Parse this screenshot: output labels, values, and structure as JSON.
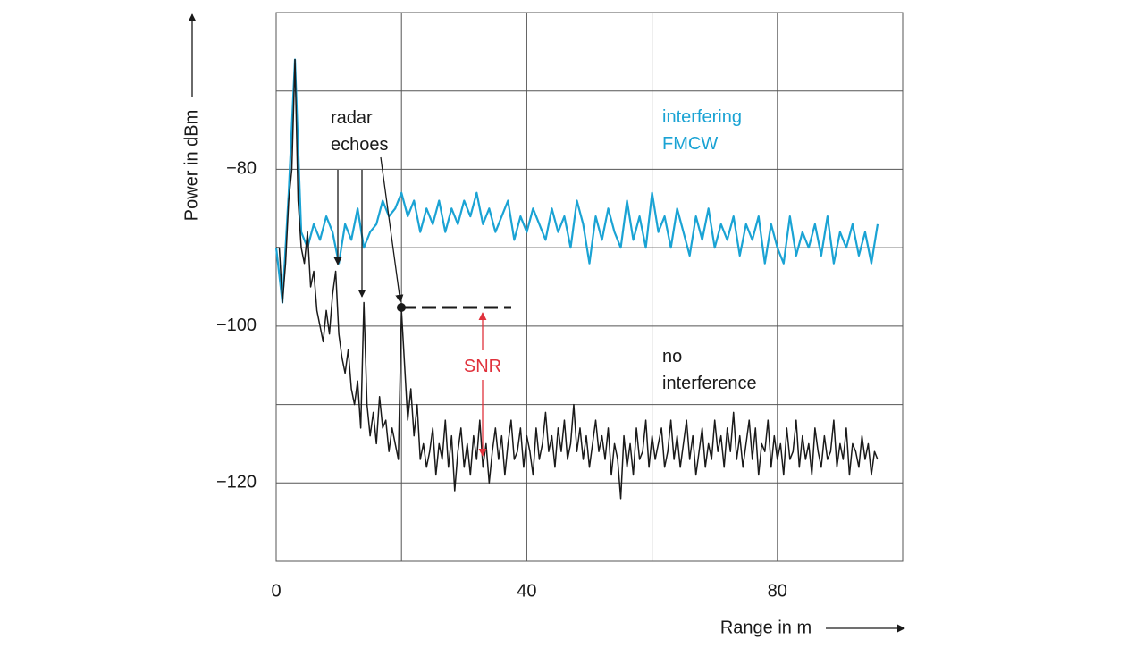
{
  "chart_data": {
    "type": "line",
    "xlabel": "Range in m",
    "ylabel": "Power in dBm",
    "xlim": [
      0,
      100
    ],
    "ylim": [
      -130,
      -60
    ],
    "xticks": [
      0,
      40,
      80
    ],
    "yticks": [
      {
        "value": -120,
        "label": "−120"
      },
      {
        "value": -100,
        "label": "−100"
      },
      {
        "value": -80,
        "label": "−80"
      }
    ],
    "minor_xticks": [
      20,
      60,
      100
    ],
    "minor_yticks": [
      -110,
      -90,
      -70
    ],
    "grid": true,
    "annotations": [
      {
        "lines": [
          "radar",
          "echoes"
        ]
      },
      {
        "lines": [
          "interfering",
          "FMCW"
        ],
        "color": "#1aa3d4"
      },
      {
        "lines": [
          "no",
          "interference"
        ]
      },
      {
        "lines": [
          "SNR"
        ],
        "color": "#e0323c"
      }
    ],
    "series": [
      {
        "name": "interfering FMCW",
        "color": "#1aa3d4",
        "x": [
          0,
          1,
          2,
          3,
          4,
          5,
          6,
          7,
          8,
          9,
          10,
          11,
          12,
          13,
          14,
          15,
          16,
          17,
          18,
          19,
          20,
          21,
          22,
          23,
          24,
          25,
          26,
          27,
          28,
          29,
          30,
          31,
          32,
          33,
          34,
          35,
          36,
          37,
          38,
          39,
          40,
          41,
          42,
          43,
          44,
          45,
          46,
          47,
          48,
          49,
          50,
          51,
          52,
          53,
          54,
          55,
          56,
          57,
          58,
          59,
          60,
          61,
          62,
          63,
          64,
          65,
          66,
          67,
          68,
          69,
          70,
          71,
          72,
          73,
          74,
          75,
          76,
          77,
          78,
          79,
          80,
          81,
          82,
          83,
          84,
          85,
          86,
          87,
          88,
          89,
          90,
          91,
          92,
          93,
          94,
          95,
          96
        ],
        "values": [
          -90,
          -97,
          -83,
          -66,
          -88,
          -90,
          -87,
          -89,
          -86,
          -88,
          -92,
          -87,
          -89,
          -85,
          -90,
          -88,
          -87,
          -84,
          -86,
          -85,
          -83,
          -86,
          -84,
          -88,
          -85,
          -87,
          -84,
          -88,
          -85,
          -87,
          -84,
          -86,
          -83,
          -87,
          -85,
          -88,
          -86,
          -84,
          -89,
          -86,
          -88,
          -85,
          -87,
          -89,
          -85,
          -88,
          -86,
          -90,
          -84,
          -87,
          -92,
          -86,
          -89,
          -85,
          -88,
          -90,
          -84,
          -89,
          -86,
          -90,
          -83,
          -88,
          -86,
          -90,
          -85,
          -88,
          -91,
          -86,
          -89,
          -85,
          -90,
          -87,
          -89,
          -86,
          -91,
          -87,
          -89,
          -86,
          -92,
          -87,
          -90,
          -92,
          -86,
          -91,
          -88,
          -90,
          -87,
          -91,
          -86,
          -92,
          -88,
          -90,
          -87,
          -91,
          -88,
          -92,
          -87
        ]
      },
      {
        "name": "no interference",
        "color": "#1a1a1a",
        "x": [
          0,
          0.5,
          1,
          1.5,
          2,
          2.5,
          3,
          3.5,
          4,
          4.5,
          5,
          5.5,
          6,
          6.5,
          7,
          7.5,
          8,
          8.5,
          9,
          9.5,
          10,
          10.5,
          11,
          11.5,
          12,
          12.5,
          13,
          13.5,
          14,
          14.5,
          15,
          15.5,
          16,
          16.5,
          17,
          17.5,
          18,
          18.5,
          19,
          19.5,
          20,
          20.5,
          21,
          21.5,
          22,
          22.5,
          23,
          23.5,
          24,
          24.5,
          25,
          25.5,
          26,
          26.5,
          27,
          27.5,
          28,
          28.5,
          29,
          29.5,
          30,
          30.5,
          31,
          31.5,
          32,
          32.5,
          33,
          33.5,
          34,
          34.5,
          35,
          35.5,
          36,
          36.5,
          37,
          37.5,
          38,
          38.5,
          39,
          39.5,
          40,
          40.5,
          41,
          41.5,
          42,
          42.5,
          43,
          43.5,
          44,
          44.5,
          45,
          45.5,
          46,
          46.5,
          47,
          47.5,
          48,
          48.5,
          49,
          49.5,
          50,
          50.5,
          51,
          51.5,
          52,
          52.5,
          53,
          53.5,
          54,
          54.5,
          55,
          55.5,
          56,
          56.5,
          57,
          57.5,
          58,
          58.5,
          59,
          59.5,
          60,
          60.5,
          61,
          61.5,
          62,
          62.5,
          63,
          63.5,
          64,
          64.5,
          65,
          65.5,
          66,
          66.5,
          67,
          67.5,
          68,
          68.5,
          69,
          69.5,
          70,
          70.5,
          71,
          71.5,
          72,
          72.5,
          73,
          73.5,
          74,
          74.5,
          75,
          75.5,
          76,
          76.5,
          77,
          77.5,
          78,
          78.5,
          79,
          79.5,
          80,
          80.5,
          81,
          81.5,
          82,
          82.5,
          83,
          83.5,
          84,
          84.5,
          85,
          85.5,
          86,
          86.5,
          87,
          87.5,
          88,
          88.5,
          89,
          89.5,
          90,
          90.5,
          91,
          91.5,
          92,
          92.5,
          93,
          93.5,
          94,
          94.5,
          95,
          95.5,
          96
        ],
        "values": [
          -90,
          -90,
          -97,
          -92,
          -84,
          -80,
          -66,
          -84,
          -90,
          -92,
          -88,
          -95,
          -93,
          -98,
          -100,
          -102,
          -98,
          -101,
          -96,
          -93,
          -101,
          -104,
          -106,
          -103,
          -108,
          -110,
          -107,
          -113,
          -97,
          -110,
          -114,
          -111,
          -115,
          -109,
          -113,
          -112,
          -116,
          -113,
          -115,
          -117,
          -98,
          -105,
          -112,
          -108,
          -114,
          -110,
          -117,
          -115,
          -118,
          -116,
          -113,
          -119,
          -115,
          -117,
          -112,
          -118,
          -114,
          -121,
          -116,
          -113,
          -118,
          -115,
          -119,
          -114,
          -117,
          -112,
          -118,
          -115,
          -120,
          -116,
          -113,
          -117,
          -114,
          -119,
          -115,
          -112,
          -117,
          -116,
          -113,
          -118,
          -114,
          -116,
          -119,
          -113,
          -117,
          -115,
          -111,
          -116,
          -114,
          -118,
          -113,
          -116,
          -112,
          -117,
          -115,
          -110,
          -116,
          -113,
          -117,
          -114,
          -118,
          -115,
          -112,
          -116,
          -114,
          -117,
          -113,
          -119,
          -115,
          -117,
          -122,
          -114,
          -118,
          -115,
          -119,
          -113,
          -117,
          -116,
          -112,
          -118,
          -114,
          -117,
          -115,
          -113,
          -118,
          -116,
          -112,
          -117,
          -114,
          -118,
          -115,
          -112,
          -117,
          -114,
          -119,
          -116,
          -113,
          -118,
          -115,
          -117,
          -112,
          -116,
          -114,
          -118,
          -113,
          -116,
          -111,
          -117,
          -114,
          -118,
          -115,
          -112,
          -117,
          -113,
          -119,
          -115,
          -116,
          -112,
          -118,
          -114,
          -117,
          -115,
          -119,
          -113,
          -117,
          -116,
          -112,
          -118,
          -114,
          -117,
          -115,
          -119,
          -113,
          -116,
          -118,
          -114,
          -117,
          -116,
          -112,
          -118,
          -115,
          -117,
          -113,
          -119,
          -115,
          -116,
          -118,
          -114,
          -117,
          -115,
          -119,
          -116,
          -117
        ]
      }
    ]
  }
}
